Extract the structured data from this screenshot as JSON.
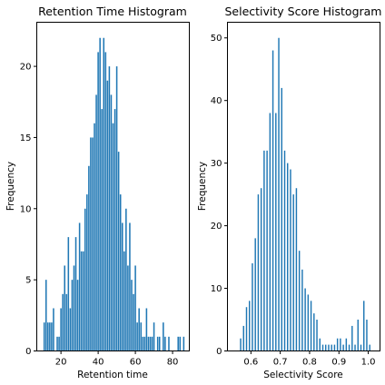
{
  "figure": {
    "background": "#ffffff",
    "bar_color": "#1f77b4"
  },
  "chart_data": [
    {
      "type": "bar",
      "title": "Retention Time Histogram",
      "xlabel": "Retention time",
      "ylabel": "Frequency",
      "xlim": [
        7,
        89
      ],
      "ylim": [
        0,
        23.1
      ],
      "xticks": [
        20,
        40,
        60,
        80
      ],
      "yticks": [
        0,
        5,
        10,
        15,
        20
      ],
      "grid": false,
      "bar_width": 0.75,
      "x": [
        11,
        12,
        13,
        14,
        15,
        16,
        17,
        18,
        19,
        20,
        21,
        22,
        23,
        24,
        25,
        26,
        27,
        28,
        29,
        30,
        31,
        32,
        33,
        34,
        35,
        36,
        37,
        38,
        39,
        40,
        41,
        42,
        43,
        44,
        45,
        46,
        47,
        48,
        49,
        50,
        51,
        52,
        53,
        54,
        55,
        56,
        57,
        58,
        59,
        60,
        61,
        62,
        63,
        64,
        65,
        66,
        67,
        68,
        69,
        70,
        72,
        73,
        75,
        76,
        78,
        83,
        84,
        86
      ],
      "values": [
        2,
        5,
        2,
        2,
        2,
        3,
        0,
        1,
        1,
        3,
        4,
        6,
        4,
        8,
        3,
        5,
        6,
        8,
        5,
        9,
        7,
        7,
        10,
        11,
        13,
        15,
        15,
        16,
        18,
        21,
        22,
        17,
        22,
        21,
        19,
        20,
        18,
        16,
        17,
        20,
        14,
        11,
        9,
        7,
        10,
        6,
        9,
        5,
        4,
        6,
        2,
        3,
        2,
        1,
        1,
        3,
        1,
        1,
        1,
        2,
        1,
        1,
        2,
        1,
        1,
        1,
        1,
        1
      ]
    },
    {
      "type": "bar",
      "title": "Selectivity Score Histogram",
      "xlabel": "Selectivity Score",
      "ylabel": "Frequency",
      "xlim": [
        0.52,
        1.04
      ],
      "ylim": [
        0,
        52.5
      ],
      "xticks": [
        0.6,
        0.7,
        0.8,
        0.9,
        1.0
      ],
      "xtick_labels": [
        "0.6",
        "0.7",
        "0.8",
        "0.9",
        "1.0"
      ],
      "yticks": [
        0,
        10,
        20,
        30,
        40,
        50
      ],
      "grid": false,
      "bar_width": 0.0045,
      "x": [
        0.565,
        0.575,
        0.585,
        0.595,
        0.605,
        0.615,
        0.625,
        0.635,
        0.645,
        0.655,
        0.665,
        0.675,
        0.685,
        0.695,
        0.705,
        0.715,
        0.725,
        0.735,
        0.745,
        0.755,
        0.765,
        0.775,
        0.785,
        0.795,
        0.805,
        0.815,
        0.825,
        0.835,
        0.845,
        0.855,
        0.865,
        0.875,
        0.885,
        0.895,
        0.905,
        0.915,
        0.925,
        0.935,
        0.945,
        0.955,
        0.965,
        0.975,
        0.985,
        0.995,
        1.005
      ],
      "values": [
        2,
        4,
        7,
        8,
        14,
        18,
        25,
        26,
        32,
        32,
        38,
        48,
        38,
        50,
        42,
        32,
        30,
        29,
        25,
        26,
        16,
        13,
        10,
        9,
        8,
        6,
        5,
        2,
        1,
        1,
        1,
        1,
        1,
        2,
        2,
        1,
        2,
        1,
        4,
        1,
        5,
        1,
        8,
        5,
        1
      ]
    }
  ]
}
